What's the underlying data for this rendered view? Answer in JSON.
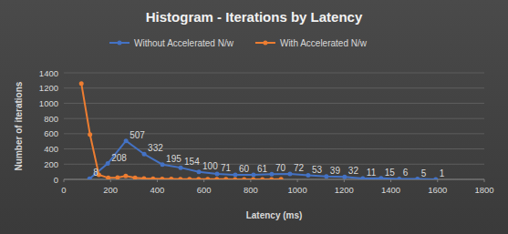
{
  "chart_data": {
    "type": "line",
    "title": "Histogram - Iterations by Latency",
    "x_label": "Latency (ms)",
    "y_label": "Number of iterations",
    "xlim": [
      0,
      1800
    ],
    "xticks": [
      0,
      200,
      400,
      600,
      800,
      1000,
      1200,
      1400,
      1600,
      1800
    ],
    "ylim": [
      0,
      1400
    ],
    "yticks": [
      0,
      200,
      400,
      600,
      800,
      1000,
      1200,
      1400
    ],
    "grid": true,
    "legend": "top",
    "series": [
      {
        "name": "Without Accelerated N/w",
        "color": "#4472c4",
        "marker": "circle",
        "line_style": "solid",
        "data_labels": true,
        "x": [
          110,
          188,
          266,
          344,
          422,
          500,
          578,
          656,
          734,
          812,
          890,
          968,
          1046,
          1124,
          1202,
          1280,
          1358,
          1436,
          1514,
          1592
        ],
        "values": [
          8,
          208,
          507,
          332,
          195,
          154,
          100,
          71,
          60,
          61,
          70,
          72,
          53,
          39,
          32,
          11,
          15,
          6,
          5,
          1
        ]
      },
      {
        "name": "With Accelerated N/w",
        "color": "#ed7d31",
        "marker": "circle",
        "line_style": "solid",
        "data_labels": false,
        "x": [
          75,
          112,
          150,
          190,
          230,
          265,
          305,
          343,
          382,
          421,
          460,
          499,
          538,
          577,
          616,
          655,
          694,
          733,
          772,
          811,
          850,
          889,
          930
        ],
        "values": [
          1260,
          590,
          60,
          20,
          25,
          45,
          20,
          12,
          8,
          6,
          5,
          4,
          3,
          3,
          2,
          2,
          2,
          1,
          1,
          1,
          1,
          1,
          2
        ]
      }
    ]
  }
}
